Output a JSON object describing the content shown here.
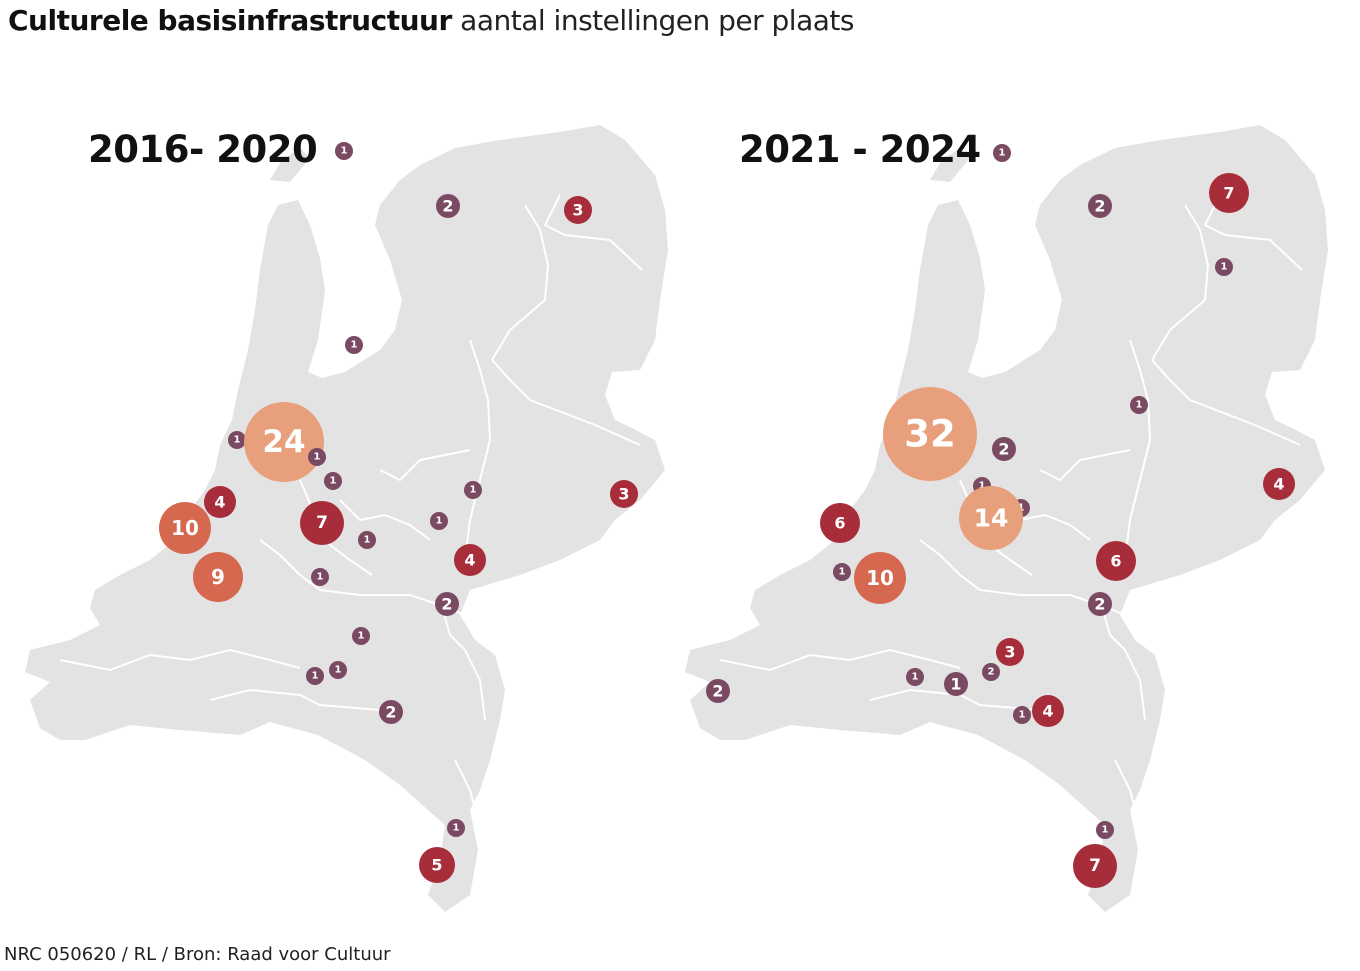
{
  "title": {
    "bold": "Culturele basisinfrastructuur",
    "rest": " aantal instellingen per plaats"
  },
  "source": "NRC 050620 / RL / Bron: Raad voor Cultuur",
  "colors": {
    "land": "#e3e3e3",
    "border": "#ffffff",
    "small": "#7a4a62",
    "medium": "#a72d3a",
    "large": "#d5684f",
    "xlarge": "#e8a07c"
  },
  "maps": [
    {
      "label": "2016- 2020",
      "bubbles": [
        {
          "value": "1"
        },
        {
          "value": "2"
        },
        {
          "value": "3"
        },
        {
          "value": "1"
        },
        {
          "value": "1"
        },
        {
          "value": "24"
        },
        {
          "value": "1"
        },
        {
          "value": "1"
        },
        {
          "value": "4"
        },
        {
          "value": "10"
        },
        {
          "value": "7"
        },
        {
          "value": "1"
        },
        {
          "value": "3"
        },
        {
          "value": "1"
        },
        {
          "value": "1"
        },
        {
          "value": "4"
        },
        {
          "value": "9"
        },
        {
          "value": "1"
        },
        {
          "value": "2"
        },
        {
          "value": "1"
        },
        {
          "value": "1"
        },
        {
          "value": "1"
        },
        {
          "value": "2"
        },
        {
          "value": "1"
        },
        {
          "value": "5"
        }
      ]
    },
    {
      "label": "2021 - 2024",
      "bubbles": [
        {
          "value": "1"
        },
        {
          "value": "2"
        },
        {
          "value": "7"
        },
        {
          "value": "1"
        },
        {
          "value": "1"
        },
        {
          "value": "32"
        },
        {
          "value": "2"
        },
        {
          "value": "1"
        },
        {
          "value": "1"
        },
        {
          "value": "14"
        },
        {
          "value": "4"
        },
        {
          "value": "6"
        },
        {
          "value": "6"
        },
        {
          "value": "1"
        },
        {
          "value": "10"
        },
        {
          "value": "2"
        },
        {
          "value": "3"
        },
        {
          "value": "1"
        },
        {
          "value": "2"
        },
        {
          "value": "1"
        },
        {
          "value": "2"
        },
        {
          "value": "1"
        },
        {
          "value": "4"
        },
        {
          "value": "1"
        },
        {
          "value": "7"
        }
      ]
    }
  ]
}
